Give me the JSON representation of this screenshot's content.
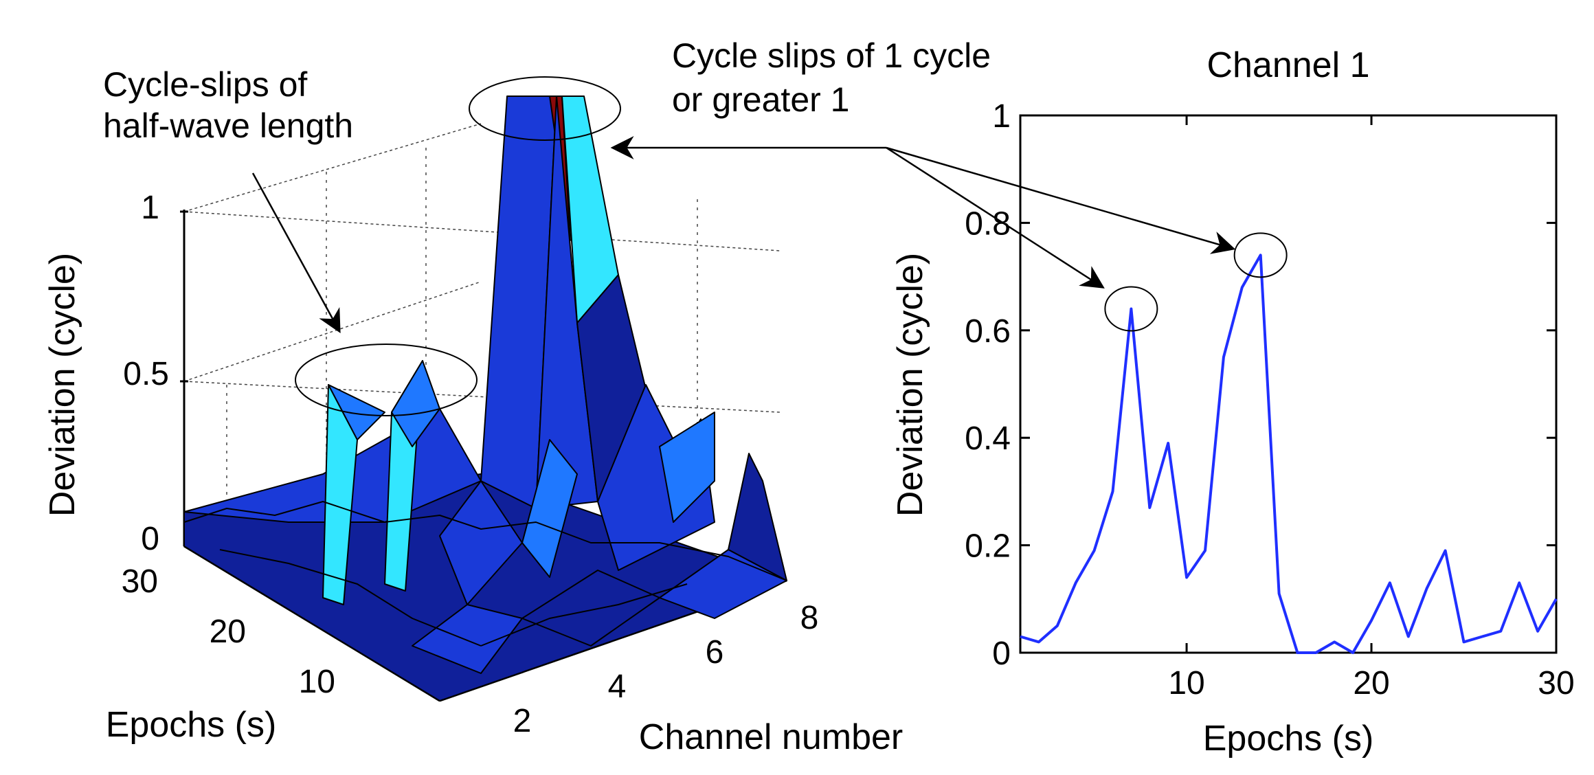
{
  "colors": {
    "line": "#1f2fff",
    "surface_dark": "#10209a",
    "surface_mid": "#1a3ad8",
    "surface_light": "#1f78ff",
    "surface_cyan": "#33e6ff",
    "surface_peak": "#8b0a0a",
    "annotation": "#000000"
  },
  "annotations": {
    "half_wave_line1": "Cycle-slips of",
    "half_wave_line2": "half-wave length",
    "full_cycle_line1": "Cycle slips of 1 cycle",
    "full_cycle_line2": "or greater 1"
  },
  "chart_data": [
    {
      "type": "surface",
      "title": "",
      "zlabel": "Deviation (cycle)",
      "xlabel": "Channel number",
      "ylabel": "Epochs (s)",
      "z_ticks": [
        "0",
        "0.5",
        "1"
      ],
      "x_ticks": [
        "2",
        "4",
        "6",
        "8"
      ],
      "y_ticks": [
        "10",
        "20",
        "30"
      ],
      "zlim": [
        0,
        1
      ],
      "xlim": [
        1,
        8
      ],
      "ylim": [
        1,
        30
      ]
    },
    {
      "type": "line",
      "title": "Channel 1",
      "xlabel": "Epochs (s)",
      "ylabel": "Deviation (cycle)",
      "xlim": [
        1,
        30
      ],
      "ylim": [
        0,
        1
      ],
      "x_ticks": [
        "10",
        "20",
        "30"
      ],
      "y_ticks": [
        "0",
        "0.2",
        "0.4",
        "0.6",
        "0.8",
        "1"
      ],
      "series": [
        {
          "name": "Channel 1",
          "x": [
            1,
            2,
            3,
            4,
            5,
            6,
            7,
            8,
            9,
            10,
            11,
            12,
            13,
            14,
            15,
            16,
            17,
            18,
            19,
            20,
            21,
            22,
            23,
            24,
            25,
            26,
            27,
            28,
            29,
            30
          ],
          "values": [
            0.03,
            0.02,
            0.05,
            0.13,
            0.19,
            0.3,
            0.64,
            0.27,
            0.39,
            0.14,
            0.19,
            0.55,
            0.68,
            0.74,
            0.11,
            0.0,
            0.0,
            0.02,
            0.0,
            0.06,
            0.13,
            0.03,
            0.12,
            0.19,
            0.02,
            0.03,
            0.04,
            0.13,
            0.04,
            0.1
          ]
        }
      ],
      "highlighted_epochs": [
        7,
        14
      ]
    }
  ]
}
